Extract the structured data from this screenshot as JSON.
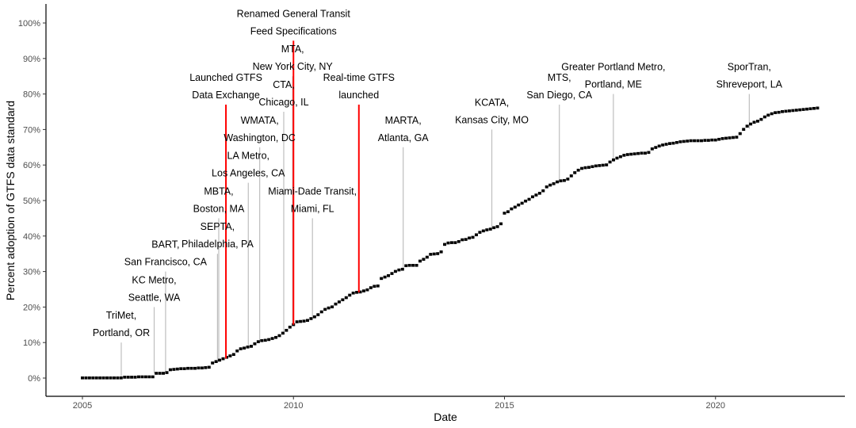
{
  "chart_data": {
    "type": "scatter",
    "title": "",
    "xlabel": "Date",
    "ylabel": "Percent adoption of GTFS data standard",
    "xlim": [
      2004.2,
      2023.3
    ],
    "ylim": [
      -5,
      105
    ],
    "x_ticks": [
      2005,
      2010,
      2015,
      2020
    ],
    "x_tick_labels": [
      "2005",
      "2010",
      "2015",
      "2020"
    ],
    "y_ticks": [
      0,
      10,
      20,
      30,
      40,
      50,
      60,
      70,
      80,
      90,
      100
    ],
    "y_tick_labels": [
      "0%",
      "10%",
      "20%",
      "30%",
      "40%",
      "50%",
      "60%",
      "70%",
      "80%",
      "90%",
      "100%"
    ],
    "grid": false,
    "legend": "none",
    "series": [
      {
        "name": "Percent adoption",
        "start_year": 2005.0,
        "step_years": 0.08333,
        "color": "#000000",
        "values": [
          0,
          0,
          0,
          0,
          0,
          0,
          0,
          0,
          0,
          0,
          0,
          0,
          0.2,
          0.2,
          0.2,
          0.2,
          0.3,
          0.3,
          0.3,
          0.3,
          0.3,
          1.3,
          1.3,
          1.3,
          1.5,
          2.3,
          2.4,
          2.5,
          2.6,
          2.6,
          2.7,
          2.7,
          2.7,
          2.8,
          2.8,
          2.9,
          3.0,
          4.2,
          4.6,
          5.0,
          5.4,
          5.8,
          6.2,
          6.6,
          7.6,
          8.2,
          8.4,
          8.7,
          8.9,
          9.6,
          10.2,
          10.5,
          10.6,
          10.8,
          11.1,
          11.4,
          11.9,
          12.6,
          13.4,
          14.3,
          15.0,
          15.8,
          15.9,
          16.0,
          16.2,
          16.7,
          17.2,
          17.8,
          18.6,
          19.3,
          19.7,
          20.0,
          20.8,
          21.4,
          22.0,
          22.6,
          23.3,
          23.9,
          24.1,
          24.2,
          24.5,
          24.8,
          25.4,
          25.8,
          25.9,
          28.0,
          28.4,
          28.8,
          29.4,
          30.0,
          30.4,
          30.6,
          31.6,
          31.7,
          31.7,
          31.7,
          32.9,
          33.4,
          34.0,
          34.8,
          34.9,
          35.0,
          35.5,
          37.6,
          38.0,
          38.1,
          38.1,
          38.4,
          38.9,
          39.0,
          39.4,
          39.6,
          40.3,
          41.0,
          41.4,
          41.7,
          41.9,
          42.3,
          42.6,
          43.4,
          46.4,
          46.8,
          47.6,
          48.1,
          48.7,
          49.2,
          49.8,
          50.3,
          51.0,
          51.5,
          52.0,
          52.7,
          53.8,
          54.3,
          54.7,
          55.2,
          55.5,
          55.6,
          56.0,
          56.9,
          57.8,
          58.5,
          59.0,
          59.2,
          59.3,
          59.5,
          59.7,
          59.8,
          59.9,
          60.0,
          60.8,
          61.4,
          61.9,
          62.3,
          62.7,
          62.9,
          63.0,
          63.1,
          63.2,
          63.3,
          63.3,
          63.5,
          64.5,
          64.9,
          65.3,
          65.6,
          65.8,
          66.0,
          66.1,
          66.3,
          66.5,
          66.6,
          66.7,
          66.8,
          66.8,
          66.8,
          66.8,
          66.9,
          66.9,
          67.0,
          67.0,
          67.2,
          67.4,
          67.5,
          67.6,
          67.7,
          67.8,
          68.8,
          70.0,
          70.9,
          71.5,
          72.0,
          72.3,
          72.8,
          73.5,
          74.0,
          74.4,
          74.7,
          74.8,
          75.0,
          75.1,
          75.2,
          75.3,
          75.4,
          75.5,
          75.6,
          75.7,
          75.8,
          75.9,
          76.0
        ]
      }
    ],
    "annotations": [
      {
        "kind": "agency",
        "x": 2005.92,
        "y_from": 0.3,
        "y_to": 10,
        "lines": [
          "TriMet,",
          "Portland, OR"
        ],
        "color": "#bebebe"
      },
      {
        "kind": "agency",
        "x": 2006.7,
        "y_from": 1.3,
        "y_to": 20,
        "lines": [
          "KC Metro,",
          "Seattle, WA"
        ],
        "color": "#bebebe"
      },
      {
        "kind": "agency",
        "x": 2006.97,
        "y_from": 1.4,
        "y_to": 30,
        "lines": [
          "BART,",
          "San Francisco, CA"
        ],
        "color": "#bebebe"
      },
      {
        "kind": "agency",
        "x": 2008.2,
        "y_from": 4.4,
        "y_to": 35,
        "lines": [
          "SEPTA,",
          "Philadelphia, PA"
        ],
        "color": "#bebebe"
      },
      {
        "kind": "agency",
        "x": 2008.23,
        "y_from": 4.6,
        "y_to": 45,
        "lines": [
          "MBTA,",
          "Boston, MA"
        ],
        "color": "#bebebe"
      },
      {
        "kind": "agency",
        "x": 2008.93,
        "y_from": 8.4,
        "y_to": 55,
        "lines": [
          "LA Metro,",
          "Los Angeles, CA"
        ],
        "color": "#bebebe"
      },
      {
        "kind": "agency",
        "x": 2009.2,
        "y_from": 10.3,
        "y_to": 65,
        "lines": [
          "WMATA,",
          "Washington, DC"
        ],
        "color": "#bebebe"
      },
      {
        "kind": "agency",
        "x": 2009.77,
        "y_from": 12.6,
        "y_to": 75,
        "lines": [
          "CTA,",
          "Chicago, IL"
        ],
        "color": "#bebebe"
      },
      {
        "kind": "agency",
        "x": 2009.98,
        "y_from": 15.0,
        "y_to": 85,
        "lines": [
          "MTA,",
          "New York City, NY"
        ],
        "color": "#bebebe"
      },
      {
        "kind": "agency",
        "x": 2010.45,
        "y_from": 16.7,
        "y_to": 45,
        "lines": [
          "Miami-Dade Transit,",
          "Miami, FL"
        ],
        "color": "#bebebe"
      },
      {
        "kind": "agency",
        "x": 2012.6,
        "y_from": 30.5,
        "y_to": 65,
        "lines": [
          "MARTA,",
          "Atlanta, GA"
        ],
        "color": "#bebebe"
      },
      {
        "kind": "agency",
        "x": 2014.7,
        "y_from": 42.0,
        "y_to": 70,
        "lines": [
          "KCATA,",
          "Kansas City, MO"
        ],
        "color": "#bebebe"
      },
      {
        "kind": "agency",
        "x": 2016.3,
        "y_from": 55.0,
        "y_to": 77,
        "lines": [
          "MTS,",
          "San Diego, CA"
        ],
        "color": "#bebebe"
      },
      {
        "kind": "agency",
        "x": 2017.58,
        "y_from": 60.9,
        "y_to": 80,
        "lines": [
          "Greater Portland Metro,",
          "Portland, ME"
        ],
        "color": "#bebebe"
      },
      {
        "kind": "agency",
        "x": 2020.8,
        "y_from": 70.2,
        "y_to": 80,
        "lines": [
          "SporTran,",
          "Shreveport, LA"
        ],
        "color": "#bebebe"
      },
      {
        "kind": "event",
        "x": 2008.4,
        "y_from": 5.5,
        "y_to": 77,
        "lines": [
          "Launched GTFS",
          "Data Exchange"
        ],
        "color": "#ff0000"
      },
      {
        "kind": "event",
        "x": 2010.0,
        "y_from": 15.0,
        "y_to": 95,
        "lines": [
          "Renamed General Transit",
          "Feed Specifications"
        ],
        "color": "#ff0000"
      },
      {
        "kind": "event",
        "x": 2011.55,
        "y_from": 24.1,
        "y_to": 77,
        "lines": [
          "Real-time GTFS",
          "launched"
        ],
        "color": "#ff0000"
      }
    ]
  }
}
